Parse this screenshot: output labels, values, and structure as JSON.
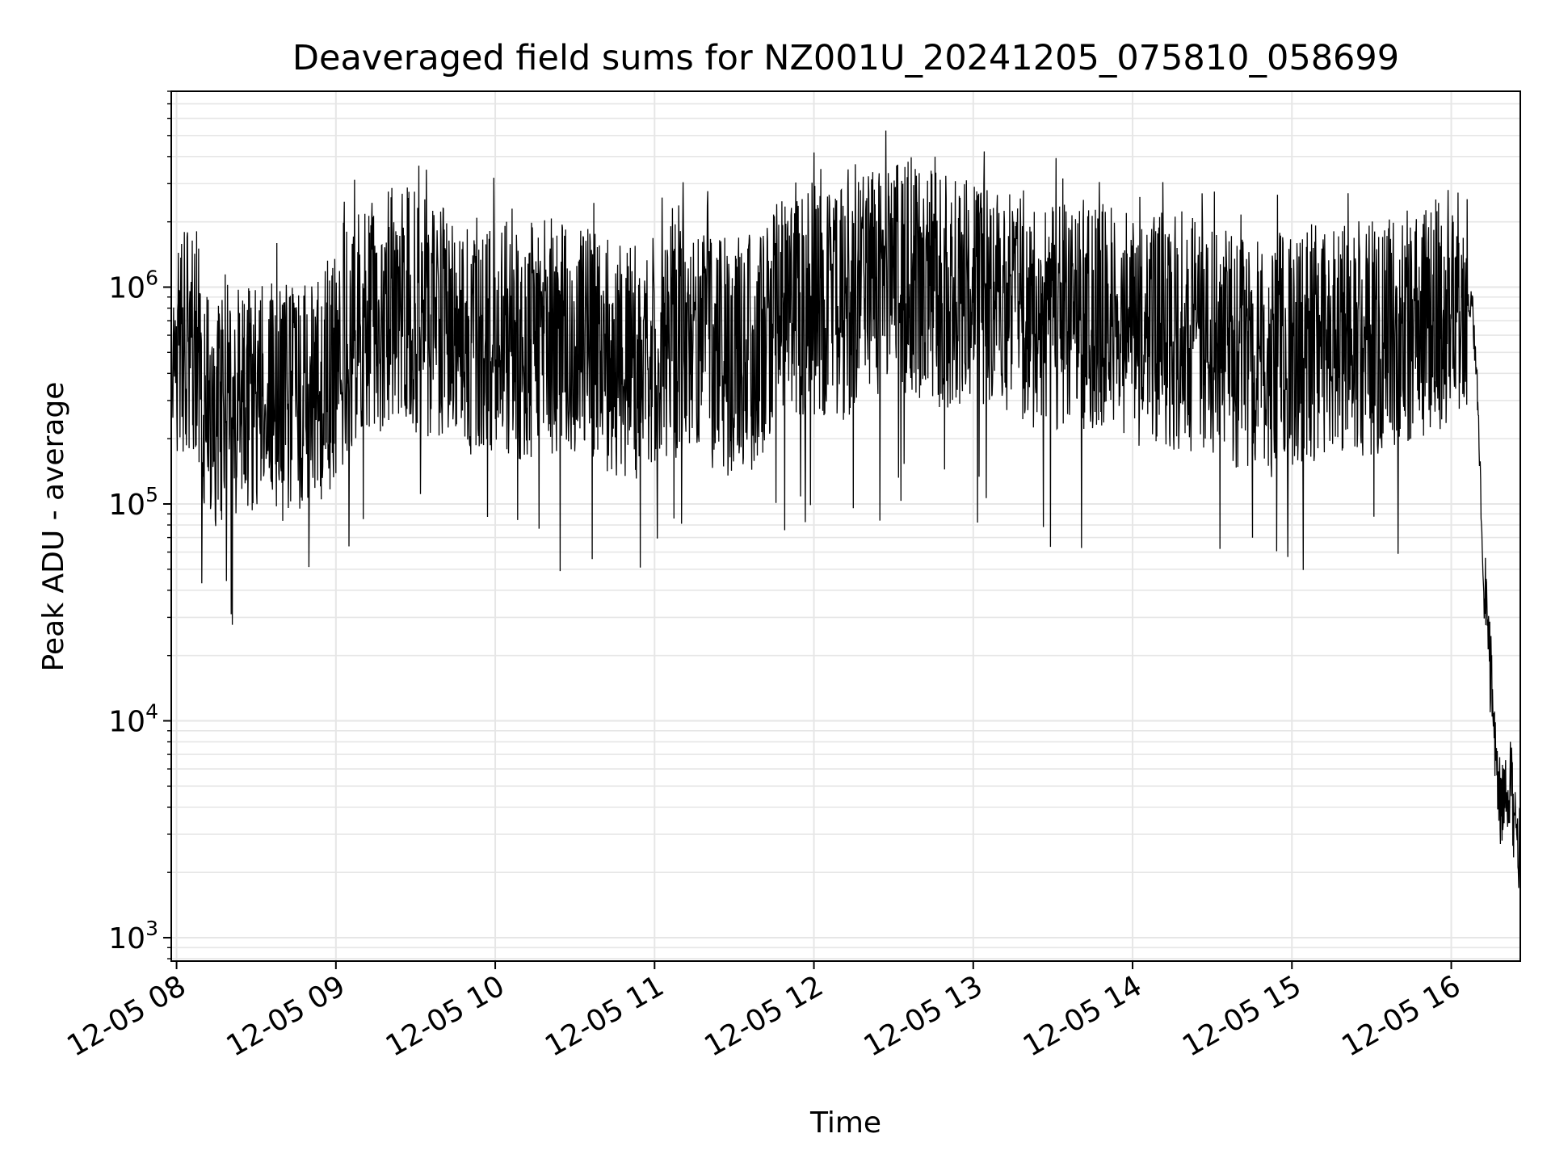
{
  "chart_data": {
    "type": "line",
    "title": "Deaveraged field sums for NZ001U_20241205_075810_058699",
    "xlabel": "Time",
    "ylabel": "Peak ADU - average",
    "yscale": "log",
    "grid": true,
    "legend": "none",
    "x_range": [
      "12-05 07:58",
      "12-05 16:26"
    ],
    "ylim": [
      780,
      8000000
    ],
    "x_ticks": [
      "12-05 08",
      "12-05 09",
      "12-05 10",
      "12-05 11",
      "12-05 12",
      "12-05 13",
      "12-05 14",
      "12-05 15",
      "12-05 16"
    ],
    "y_ticks": [
      {
        "base": "10",
        "exp": "3",
        "value": 1000
      },
      {
        "base": "10",
        "exp": "4",
        "value": 10000
      },
      {
        "base": "10",
        "exp": "5",
        "value": 100000
      },
      {
        "base": "10",
        "exp": "6",
        "value": 1000000
      }
    ],
    "line_color": "#000000",
    "series": [
      {
        "x": [
          "07:58",
          "08:05",
          "08:10",
          "08:15",
          "08:20",
          "08:30",
          "08:40",
          "08:50",
          "09:00",
          "09:10",
          "09:20",
          "09:25",
          "09:30",
          "09:40",
          "09:50",
          "10:00",
          "10:10",
          "10:20",
          "10:30",
          "10:40",
          "10:50",
          "11:00",
          "11:10",
          "11:20",
          "11:30",
          "11:40",
          "11:50",
          "12:00",
          "12:10",
          "12:20",
          "12:30",
          "12:40",
          "12:50",
          "13:00",
          "13:10",
          "13:20",
          "13:30",
          "13:40",
          "13:50",
          "14:00",
          "14:10",
          "14:20",
          "14:30",
          "14:40",
          "14:50",
          "15:00",
          "15:10",
          "15:20",
          "15:30",
          "15:40",
          "15:50",
          "16:00",
          "16:05",
          "16:08",
          "16:10",
          "16:12",
          "16:15",
          "16:18",
          "16:20",
          "16:22",
          "16:24",
          "16:26"
        ],
        "y": [
          550000,
          620000,
          350000,
          260000,
          300000,
          320000,
          290000,
          330000,
          420000,
          700000,
          800000,
          900000,
          760000,
          660000,
          600000,
          580000,
          560000,
          610000,
          570000,
          480000,
          440000,
          520000,
          560000,
          500000,
          470000,
          520000,
          900000,
          880000,
          800000,
          1000000,
          1050000,
          1000000,
          940000,
          930000,
          860000,
          800000,
          750000,
          720000,
          690000,
          660000,
          640000,
          600000,
          580000,
          500000,
          450000,
          520000,
          560000,
          540000,
          600000,
          620000,
          700000,
          850000,
          950000,
          800000,
          300000,
          50000,
          15000,
          4500,
          3800,
          5500,
          3400,
          2500
        ]
      }
    ]
  }
}
